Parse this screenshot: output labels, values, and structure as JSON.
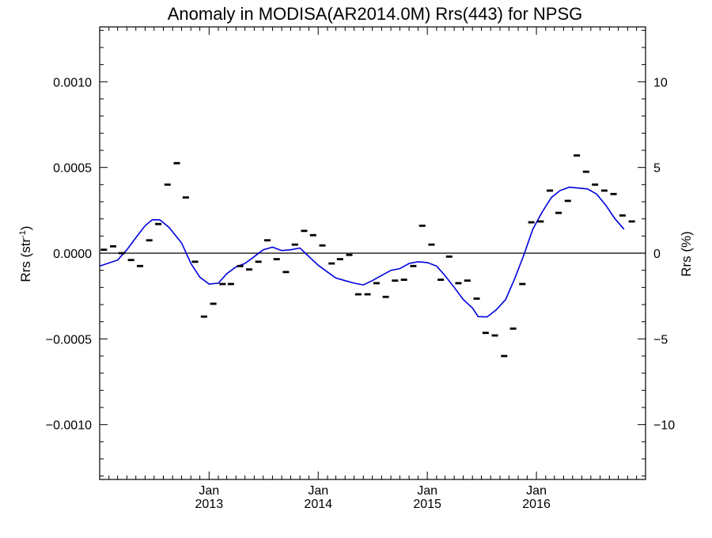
{
  "chart_data": {
    "type": "scatter",
    "title": "Anomaly in MODISA(AR2014.0M) Rrs(443) for NPSG",
    "ylabel_left": "Rrs (str",
    "ylabel_left_sup": "-1",
    "ylabel_left_close": ")",
    "ylabel_right": "Rrs (%)",
    "xlim": [
      "2012-01-01",
      "2016-12-31"
    ],
    "ylim": [
      -0.00132,
      0.00132
    ],
    "ylim_right": [
      -13.2,
      13.2
    ],
    "grid": false,
    "zero_line": 0,
    "y_ticks_left": [
      {
        "value": -0.001,
        "label": "−0.0010"
      },
      {
        "value": -0.0005,
        "label": "−0.0005"
      },
      {
        "value": 0,
        "label": "0.0000"
      },
      {
        "value": 0.0005,
        "label": "0.0005"
      },
      {
        "value": 0.001,
        "label": "0.0010"
      }
    ],
    "y_ticks_right": [
      {
        "value": -10,
        "label": "−10"
      },
      {
        "value": -5,
        "label": "−5"
      },
      {
        "value": 0,
        "label": "0"
      },
      {
        "value": 5,
        "label": "5"
      },
      {
        "value": 10,
        "label": "10"
      }
    ],
    "x_ticks": [
      {
        "date": "2013-01-01",
        "month": "Jan",
        "year": "2013"
      },
      {
        "date": "2014-01-01",
        "month": "Jan",
        "year": "2014"
      },
      {
        "date": "2015-01-01",
        "month": "Jan",
        "year": "2015"
      },
      {
        "date": "2016-01-01",
        "month": "Jan",
        "year": "2016"
      }
    ],
    "series": [
      {
        "kind": "monthly-marks",
        "color": "#000000",
        "points": [
          [
            "2012-01-15",
            2e-05
          ],
          [
            "2012-02-15",
            4e-05
          ],
          [
            "2012-03-15",
            0.0
          ],
          [
            "2012-04-15",
            -4e-05
          ],
          [
            "2012-05-15",
            -7.5e-05
          ],
          [
            "2012-06-15",
            7.5e-05
          ],
          [
            "2012-07-15",
            0.00017
          ],
          [
            "2012-08-15",
            0.0004
          ],
          [
            "2012-09-15",
            0.000525
          ],
          [
            "2012-10-15",
            0.000325
          ],
          [
            "2012-11-15",
            -5e-05
          ],
          [
            "2012-12-15",
            -0.00037
          ],
          [
            "2013-01-15",
            -0.000295
          ],
          [
            "2013-02-15",
            -0.00018
          ],
          [
            "2013-03-15",
            -0.00018
          ],
          [
            "2013-04-15",
            -7.5e-05
          ],
          [
            "2013-05-15",
            -9.5e-05
          ],
          [
            "2013-06-15",
            -5e-05
          ],
          [
            "2013-07-15",
            7.5e-05
          ],
          [
            "2013-08-15",
            -3.5e-05
          ],
          [
            "2013-09-15",
            -0.00011
          ],
          [
            "2013-10-15",
            5e-05
          ],
          [
            "2013-11-15",
            0.00013
          ],
          [
            "2013-12-15",
            0.000105
          ],
          [
            "2014-01-15",
            4.5e-05
          ],
          [
            "2014-02-15",
            -6e-05
          ],
          [
            "2014-03-15",
            -3.5e-05
          ],
          [
            "2014-04-15",
            -1e-05
          ],
          [
            "2014-05-15",
            -0.00024
          ],
          [
            "2014-06-15",
            -0.00024
          ],
          [
            "2014-07-15",
            -0.000175
          ],
          [
            "2014-08-15",
            -0.000255
          ],
          [
            "2014-09-15",
            -0.00016
          ],
          [
            "2014-10-15",
            -0.000155
          ],
          [
            "2014-11-15",
            -7.5e-05
          ],
          [
            "2014-12-15",
            0.00016
          ],
          [
            "2015-01-15",
            5e-05
          ],
          [
            "2015-02-15",
            -0.000155
          ],
          [
            "2015-03-15",
            -2e-05
          ],
          [
            "2015-04-15",
            -0.000175
          ],
          [
            "2015-05-15",
            -0.00016
          ],
          [
            "2015-06-15",
            -0.000265
          ],
          [
            "2015-07-15",
            -0.000465
          ],
          [
            "2015-08-15",
            -0.00048
          ],
          [
            "2015-09-15",
            -0.0006
          ],
          [
            "2015-10-15",
            -0.00044
          ],
          [
            "2015-11-15",
            -0.00018
          ],
          [
            "2015-12-15",
            0.00018
          ],
          [
            "2016-01-15",
            0.000185
          ],
          [
            "2016-02-15",
            0.000365
          ],
          [
            "2016-03-15",
            0.000235
          ],
          [
            "2016-04-15",
            0.000305
          ],
          [
            "2016-05-15",
            0.00057
          ],
          [
            "2016-06-15",
            0.000475
          ],
          [
            "2016-07-15",
            0.0004
          ],
          [
            "2016-08-15",
            0.000365
          ],
          [
            "2016-09-15",
            0.000345
          ],
          [
            "2016-10-15",
            0.00022
          ],
          [
            "2016-11-15",
            0.000185
          ]
        ]
      },
      {
        "kind": "smoothed-line",
        "color": "#0000dd",
        "points": [
          [
            "2011-12-15",
            -8.5e-05
          ],
          [
            "2012-03-01",
            -4e-05
          ],
          [
            "2012-04-01",
            2e-05
          ],
          [
            "2012-05-01",
            9e-05
          ],
          [
            "2012-06-01",
            0.00016
          ],
          [
            "2012-06-25",
            0.000195
          ],
          [
            "2012-07-20",
            0.000195
          ],
          [
            "2012-08-20",
            0.00015
          ],
          [
            "2012-10-01",
            6e-05
          ],
          [
            "2012-11-01",
            -6e-05
          ],
          [
            "2012-12-01",
            -0.00014
          ],
          [
            "2013-01-01",
            -0.00018
          ],
          [
            "2013-02-01",
            -0.000175
          ],
          [
            "2013-03-01",
            -0.00012
          ],
          [
            "2013-04-01",
            -8e-05
          ],
          [
            "2013-05-01",
            -6e-05
          ],
          [
            "2013-06-01",
            -2e-05
          ],
          [
            "2013-07-01",
            2e-05
          ],
          [
            "2013-08-01",
            3.5e-05
          ],
          [
            "2013-09-01",
            1.5e-05
          ],
          [
            "2013-10-01",
            2e-05
          ],
          [
            "2013-11-01",
            3e-05
          ],
          [
            "2013-12-01",
            -2e-05
          ],
          [
            "2014-01-01",
            -7e-05
          ],
          [
            "2014-02-01",
            -0.00011
          ],
          [
            "2014-03-01",
            -0.000145
          ],
          [
            "2014-04-01",
            -0.00016
          ],
          [
            "2014-05-01",
            -0.000175
          ],
          [
            "2014-06-01",
            -0.000185
          ],
          [
            "2014-07-01",
            -0.00016
          ],
          [
            "2014-08-01",
            -0.00013
          ],
          [
            "2014-09-01",
            -0.0001
          ],
          [
            "2014-10-01",
            -9e-05
          ],
          [
            "2014-11-01",
            -6e-05
          ],
          [
            "2014-12-01",
            -5e-05
          ],
          [
            "2015-01-01",
            -5.5e-05
          ],
          [
            "2015-02-01",
            -7.5e-05
          ],
          [
            "2015-03-01",
            -0.00013
          ],
          [
            "2015-04-01",
            -0.0002
          ],
          [
            "2015-05-01",
            -0.00027
          ],
          [
            "2015-06-01",
            -0.00032
          ],
          [
            "2015-06-20",
            -0.00037
          ],
          [
            "2015-07-20",
            -0.000372
          ],
          [
            "2015-08-20",
            -0.00033
          ],
          [
            "2015-09-20",
            -0.00027
          ],
          [
            "2015-10-20",
            -0.00015
          ],
          [
            "2015-11-20",
            -1e-05
          ],
          [
            "2015-12-20",
            0.00014
          ],
          [
            "2016-01-20",
            0.00024
          ],
          [
            "2016-02-20",
            0.000325
          ],
          [
            "2016-03-20",
            0.000365
          ],
          [
            "2016-04-20",
            0.000385
          ],
          [
            "2016-05-20",
            0.00038
          ],
          [
            "2016-06-20",
            0.000375
          ],
          [
            "2016-07-20",
            0.000345
          ],
          [
            "2016-08-20",
            0.00028
          ],
          [
            "2016-09-20",
            0.0002
          ],
          [
            "2016-10-20",
            0.00014
          ]
        ]
      }
    ]
  }
}
